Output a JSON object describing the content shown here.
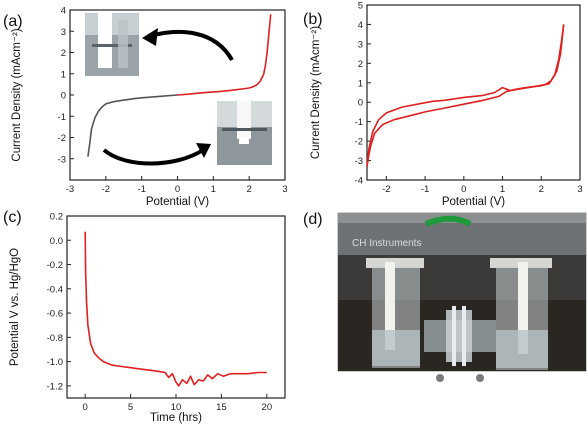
{
  "panel_labels": {
    "a": "(a)",
    "b": "(b)",
    "c": "(c)",
    "d": "(d)"
  },
  "photo_d": {
    "label_text": "CH Instruments"
  },
  "chart_data": [
    {
      "type": "line",
      "panel": "a",
      "xlabel": "Potential (V)",
      "ylabel": "Current Density (mAcm⁻²)",
      "xlim": [
        -3,
        3
      ],
      "ylim": [
        -4,
        4
      ],
      "xticks": [
        -3,
        -2,
        -1,
        0,
        1,
        2,
        3
      ],
      "yticks": [
        -3,
        -2,
        -1,
        0,
        1,
        2,
        3,
        4
      ],
      "xtick_labels": [
        "-3",
        "-2",
        "-1",
        "0",
        "1",
        "2",
        "3"
      ],
      "ytick_labels": [
        "-3",
        "-2",
        "-1",
        "0",
        "1",
        "2",
        "3",
        "4"
      ],
      "series": [
        {
          "color": "#555555",
          "x": [
            -2.5,
            -2.45,
            -2.4,
            -2.3,
            -2.2,
            -2.1,
            -2.0,
            -1.8,
            -1.5,
            -1.2,
            -1.0,
            -0.6,
            -0.3,
            0.0
          ],
          "y": [
            -2.9,
            -2.3,
            -1.6,
            -1.05,
            -0.75,
            -0.55,
            -0.42,
            -0.32,
            -0.24,
            -0.17,
            -0.13,
            -0.08,
            -0.04,
            0.0
          ]
        },
        {
          "color": "#e02020",
          "x": [
            0.0,
            0.3,
            0.6,
            0.9,
            1.2,
            1.5,
            1.8,
            2.0,
            2.1,
            2.2,
            2.3,
            2.4,
            2.45,
            2.5,
            2.55,
            2.6
          ],
          "y": [
            0.0,
            0.04,
            0.09,
            0.13,
            0.17,
            0.22,
            0.28,
            0.33,
            0.38,
            0.46,
            0.62,
            0.95,
            1.35,
            2.0,
            2.9,
            3.8
          ]
        }
      ]
    },
    {
      "type": "line",
      "panel": "b",
      "xlabel": "Potential (V)",
      "ylabel": "Current Density (mAcm⁻²)",
      "xlim": [
        -2.5,
        3
      ],
      "ylim": [
        -4,
        5
      ],
      "xticks": [
        -2,
        -1,
        0,
        1,
        2,
        3
      ],
      "yticks": [
        -4,
        -3,
        -2,
        -1,
        0,
        1,
        2,
        3,
        4,
        5
      ],
      "xtick_labels": [
        "-2",
        "-1",
        "0",
        "1",
        "2",
        "3"
      ],
      "ytick_labels": [
        "-4",
        "-3",
        "-2",
        "-1",
        "0",
        "1",
        "2",
        "3",
        "4",
        "5"
      ],
      "series": [
        {
          "color": "#e02020",
          "x": [
            -2.5,
            -2.45,
            -2.4,
            -2.3,
            -2.1,
            -1.8,
            -1.4,
            -1.0,
            -0.5,
            0.0,
            0.5,
            0.9,
            1.1,
            1.3,
            1.6,
            2.0,
            2.2,
            2.35,
            2.45,
            2.52,
            2.58
          ],
          "y": [
            -3.3,
            -2.7,
            -2.2,
            -1.6,
            -1.15,
            -0.9,
            -0.7,
            -0.5,
            -0.3,
            -0.1,
            0.1,
            0.3,
            0.55,
            0.65,
            0.75,
            0.85,
            0.95,
            1.4,
            2.2,
            3.1,
            4.0
          ]
        },
        {
          "color": "#e02020",
          "x": [
            2.58,
            2.5,
            2.4,
            2.25,
            2.1,
            1.8,
            1.5,
            1.2,
            1.0,
            0.8,
            0.5,
            0.0,
            -0.5,
            -0.8,
            -1.2,
            -1.6,
            -2.0,
            -2.2,
            -2.35,
            -2.45,
            -2.5
          ],
          "y": [
            4.0,
            2.5,
            1.6,
            1.1,
            0.9,
            0.8,
            0.7,
            0.6,
            0.75,
            0.5,
            0.35,
            0.25,
            0.1,
            0.05,
            -0.1,
            -0.25,
            -0.55,
            -0.9,
            -1.5,
            -2.4,
            -3.3
          ]
        }
      ]
    },
    {
      "type": "line",
      "panel": "c",
      "xlabel": "Time (hrs)",
      "ylabel": "Potential V vs. Hg/HgO",
      "xlim": [
        -2,
        22
      ],
      "ylim": [
        -1.3,
        0.2
      ],
      "xticks": [
        0,
        5,
        10,
        15,
        20
      ],
      "yticks": [
        0.2,
        0.0,
        -0.2,
        -0.4,
        -0.6,
        -0.8,
        -1.0,
        -1.2
      ],
      "xtick_labels": [
        "0",
        "5",
        "10",
        "15",
        "20"
      ],
      "ytick_labels": [
        "0.2",
        "0.0",
        "-0.2",
        "-0.4",
        "-0.6",
        "-0.8",
        "-1.0",
        "-1.2"
      ],
      "series": [
        {
          "color": "#e02020",
          "x": [
            0.0,
            0.05,
            0.15,
            0.3,
            0.6,
            1.0,
            1.5,
            2.0,
            3.0,
            4.0,
            5.0,
            6.0,
            7.0,
            8.0,
            8.8,
            9.2,
            9.6,
            10.0,
            10.3,
            10.7,
            11.2,
            11.6,
            12.0,
            12.5,
            13.0,
            13.5,
            14.0,
            14.6,
            15.2,
            16.0,
            17.0,
            18.0,
            19.0,
            20.0
          ],
          "y": [
            0.07,
            -0.25,
            -0.5,
            -0.7,
            -0.85,
            -0.93,
            -0.97,
            -1.0,
            -1.03,
            -1.04,
            -1.05,
            -1.06,
            -1.07,
            -1.08,
            -1.09,
            -1.13,
            -1.1,
            -1.17,
            -1.2,
            -1.15,
            -1.18,
            -1.12,
            -1.19,
            -1.15,
            -1.16,
            -1.11,
            -1.14,
            -1.1,
            -1.12,
            -1.1,
            -1.1,
            -1.1,
            -1.09,
            -1.09
          ]
        }
      ]
    }
  ]
}
